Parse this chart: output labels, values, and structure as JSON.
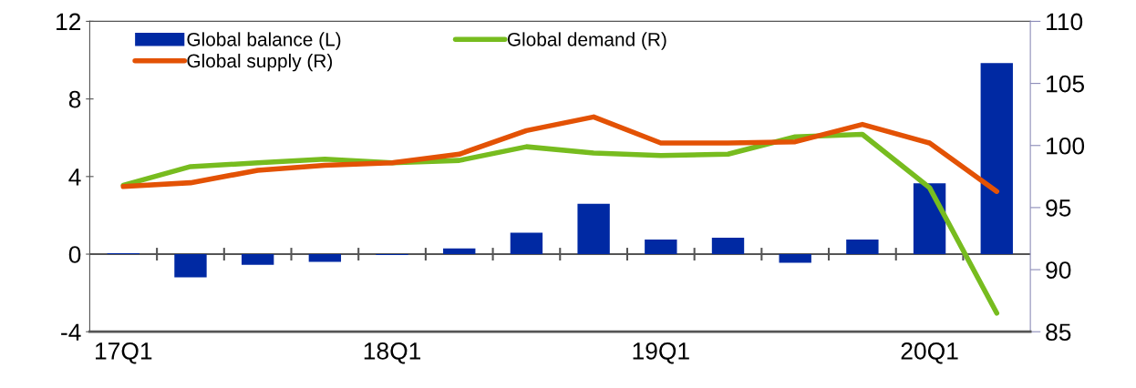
{
  "chart_data": {
    "type": "bar",
    "categories": [
      "17Q1",
      null,
      null,
      null,
      "18Q1",
      null,
      null,
      null,
      "19Q1",
      null,
      null,
      null,
      "20Q1",
      null
    ],
    "series": [
      {
        "name": "Global balance (L)",
        "color": "#0029a3",
        "values": [
          0.05,
          -1.2,
          -0.55,
          -0.4,
          -0.05,
          0.3,
          1.1,
          2.6,
          0.75,
          0.85,
          -0.45,
          0.75,
          3.65,
          9.85
        ]
      },
      {
        "name": "Global demand (R)",
        "type": "line",
        "axis": "y2",
        "color": "#77bc1f",
        "values": [
          96.8,
          98.3,
          98.6,
          98.9,
          98.6,
          98.8,
          99.9,
          99.4,
          99.2,
          99.3,
          100.7,
          100.9,
          96.6,
          86.5
        ]
      },
      {
        "name": "Global supply (R)",
        "type": "line",
        "axis": "y2",
        "color": "#e35205",
        "values": [
          96.7,
          97.0,
          98.0,
          98.4,
          98.6,
          99.3,
          101.2,
          102.3,
          100.2,
          100.2,
          100.3,
          101.7,
          100.2,
          96.3
        ]
      }
    ],
    "ylim": [
      -4,
      12
    ],
    "yticks": [
      {
        "value": -4,
        "label": "-4"
      },
      0,
      4,
      8,
      12
    ],
    "y2lim": [
      85,
      110
    ],
    "y2ticks": [
      85,
      90,
      95,
      100,
      105,
      110
    ],
    "ref_lines": [
      {
        "axis": "y",
        "value": 0,
        "color": "#555555"
      }
    ],
    "legend": "top left",
    "grid": false
  }
}
